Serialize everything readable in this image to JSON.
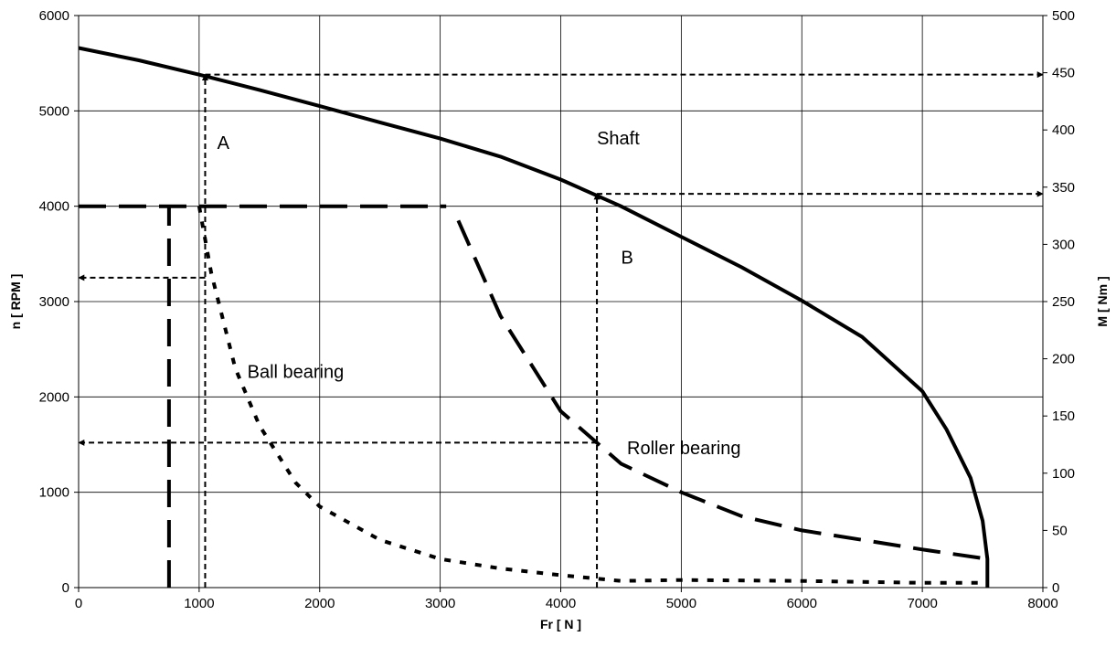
{
  "chart_data": {
    "type": "line",
    "title": "",
    "xlabel": "Fr [ N ]",
    "ylabel": "n [ RPM ]",
    "y2label": "M [ Nm ]",
    "xlim": [
      0,
      8000
    ],
    "ylim": [
      0,
      6000
    ],
    "y2lim": [
      0,
      500
    ],
    "grid": true,
    "x_ticks": [
      "0",
      "1000",
      "2000",
      "3000",
      "4000",
      "5000",
      "6000",
      "7000",
      "8000"
    ],
    "y_ticks": [
      "0",
      "1000",
      "2000",
      "3000",
      "4000",
      "5000",
      "6000"
    ],
    "y2_ticks": [
      "0",
      "50",
      "100",
      "150",
      "200",
      "250",
      "300",
      "350",
      "400",
      "450",
      "500"
    ],
    "series": [
      {
        "name": "Shaft",
        "style": "solid",
        "color": "#000000",
        "x": [
          0,
          500,
          1000,
          1500,
          2000,
          2500,
          3000,
          3500,
          4000,
          4500,
          5000,
          5500,
          6000,
          6500,
          7000,
          7200,
          7400,
          7500,
          7540,
          7540
        ],
        "y": [
          5660,
          5530,
          5380,
          5220,
          5050,
          4880,
          4710,
          4520,
          4280,
          4000,
          3680,
          3360,
          3010,
          2630,
          2060,
          1660,
          1150,
          700,
          300,
          0
        ]
      },
      {
        "name": "Ball bearing",
        "style": "dotted",
        "color": "#000000",
        "x": [
          1000,
          1100,
          1300,
          1500,
          1800,
          2000,
          2500,
          3000,
          3500,
          4000,
          4500,
          5000,
          6000,
          7000,
          7540
        ],
        "y": [
          4000,
          3300,
          2300,
          1700,
          1100,
          850,
          500,
          300,
          200,
          130,
          70,
          80,
          70,
          50,
          50
        ]
      },
      {
        "name": "Roller bearing",
        "style": "dashed",
        "color": "#000000",
        "x": [
          3150,
          3500,
          4000,
          4500,
          5000,
          5500,
          6000,
          6500,
          7000,
          7540
        ],
        "y": [
          3850,
          2850,
          1850,
          1300,
          1000,
          750,
          600,
          500,
          400,
          300
        ]
      }
    ],
    "constraint_lines": [
      {
        "style": "dashed",
        "x": [
          0,
          3050
        ],
        "y": [
          4000,
          4000
        ]
      },
      {
        "style": "dashed",
        "x": [
          750,
          750
        ],
        "y": [
          0,
          4000
        ]
      }
    ],
    "construction_arrows": [
      {
        "from": [
          1050,
          0
        ],
        "to": [
          1050,
          5380
        ],
        "axis": "left"
      },
      {
        "from": [
          1050,
          5380
        ],
        "to": [
          8000,
          5380
        ],
        "axis": "left"
      },
      {
        "from": [
          1050,
          3250
        ],
        "to": [
          0,
          3250
        ],
        "axis": "left"
      },
      {
        "from": [
          4300,
          0
        ],
        "to": [
          4300,
          4130
        ],
        "axis": "left"
      },
      {
        "from": [
          4300,
          4130
        ],
        "to": [
          8000,
          4130
        ],
        "axis": "left"
      },
      {
        "from": [
          4300,
          1520
        ],
        "to": [
          0,
          1520
        ],
        "axis": "left"
      }
    ],
    "annotations": [
      {
        "text": "Shaft",
        "x": 4300,
        "y": 4650
      },
      {
        "text": "A",
        "x": 1150,
        "y": 4600
      },
      {
        "text": "B",
        "x": 4500,
        "y": 3400
      },
      {
        "text": "Ball bearing",
        "x": 1400,
        "y": 2200
      },
      {
        "text": "Roller bearing",
        "x": 4550,
        "y": 1400
      }
    ]
  }
}
